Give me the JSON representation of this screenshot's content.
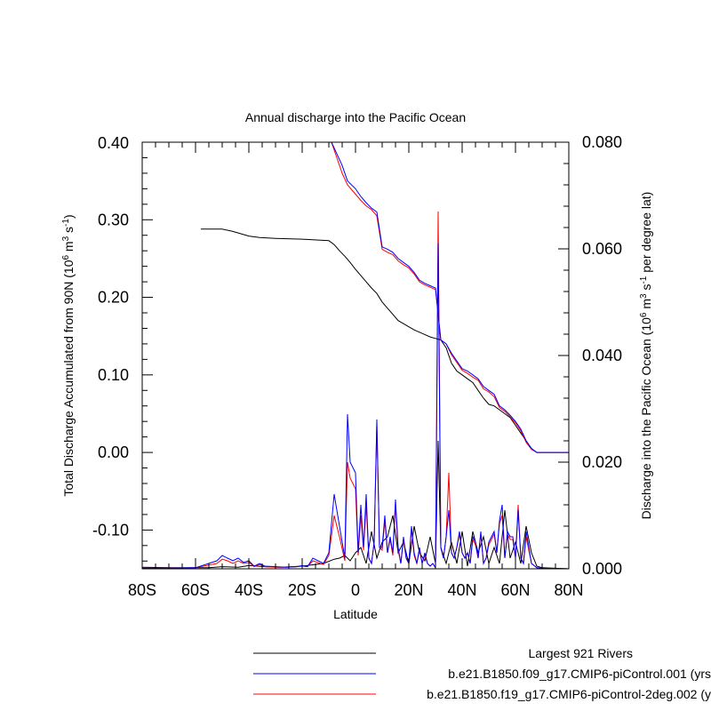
{
  "chart_data": {
    "type": "line",
    "title": "Annual discharge into the Pacific Ocean",
    "xlabel": "Latitude",
    "ylabel_left": [
      "Total Discharge Accumulated from 90N (10",
      "6",
      " m",
      "3",
      " s",
      "-1",
      ")"
    ],
    "ylabel_right": [
      "Discharge into the Pacific Ocean (10",
      "6",
      " m",
      "3",
      " s",
      "-1",
      " per degree lat)"
    ],
    "xlim": [
      -80,
      80
    ],
    "ylim_left": [
      -0.15,
      0.4
    ],
    "ylim_right": [
      0.0,
      0.08
    ],
    "x_ticks": [
      -80,
      -60,
      -40,
      -20,
      0,
      20,
      40,
      60,
      80
    ],
    "x_tick_labels": [
      "80S",
      "60S",
      "40S",
      "20S",
      "0",
      "20N",
      "40N",
      "60N",
      "80N"
    ],
    "left_ticks": [
      0.3,
      0.2,
      0.1,
      0.0,
      -0.1
    ],
    "left_tick_labels": [
      "0.30",
      "0.20",
      "0.10",
      "0.00",
      "-0.10"
    ],
    "left_top_label": "0.40",
    "right_ticks": [
      0.08,
      0.06,
      0.04,
      0.02,
      0.0
    ],
    "right_tick_labels": [
      "0.080",
      "0.060",
      "0.040",
      "0.020",
      "0.000"
    ],
    "legend": {
      "placement": "bottom-right",
      "entries": [
        {
          "label": "Largest 921 Rivers",
          "color": "#000000"
        },
        {
          "label": "b.e21.B1850.f09_g17.CMIP6-piControl.001 (yrs",
          "color": "#0000ff"
        },
        {
          "label": "b.e21.B1850.f19_g17.CMIP6-piControl-2deg.002 (y",
          "color": "#ff0000"
        }
      ]
    },
    "series": [
      {
        "name": "Largest 921 Rivers",
        "axis": "left",
        "color": "#000000",
        "x": [
          -58,
          -50,
          -46,
          -42,
          -40,
          -36,
          -30,
          -20,
          -10,
          -8,
          -6,
          -4,
          -2,
          0,
          2,
          4,
          6,
          8,
          10,
          12,
          14,
          16,
          18,
          20,
          22,
          24,
          26,
          28,
          30,
          32,
          34,
          36,
          38,
          40,
          42,
          44,
          46,
          48,
          50,
          52,
          54,
          56,
          58,
          60,
          62,
          64,
          66,
          68,
          70,
          80
        ],
        "y": [
          0.288,
          0.288,
          0.285,
          0.281,
          0.279,
          0.277,
          0.276,
          0.275,
          0.273,
          0.268,
          0.26,
          0.253,
          0.245,
          0.236,
          0.228,
          0.22,
          0.212,
          0.205,
          0.194,
          0.186,
          0.178,
          0.17,
          0.166,
          0.162,
          0.158,
          0.155,
          0.152,
          0.149,
          0.147,
          0.145,
          0.135,
          0.115,
          0.105,
          0.1,
          0.095,
          0.09,
          0.08,
          0.07,
          0.062,
          0.06,
          0.055,
          0.05,
          0.045,
          0.035,
          0.025,
          0.015,
          0.005,
          0.0,
          0.0,
          0.0
        ]
      },
      {
        "name": "b.e21.B1850.f09_g17.CMIP6-piControl.001 (yrs",
        "axis": "left",
        "color": "#0000ff",
        "x": [
          -9,
          -7,
          -5,
          -3,
          0,
          2,
          4,
          6,
          8,
          10,
          12,
          14,
          16,
          18,
          20,
          22,
          24,
          26,
          28,
          30,
          32,
          34,
          36,
          38,
          40,
          42,
          44,
          46,
          48,
          50,
          52,
          54,
          56,
          58,
          60,
          62,
          64,
          66,
          68,
          70,
          80
        ],
        "y": [
          0.4,
          0.385,
          0.37,
          0.35,
          0.34,
          0.33,
          0.322,
          0.315,
          0.31,
          0.265,
          0.262,
          0.258,
          0.25,
          0.245,
          0.24,
          0.232,
          0.222,
          0.218,
          0.215,
          0.212,
          0.145,
          0.14,
          0.128,
          0.118,
          0.108,
          0.105,
          0.1,
          0.095,
          0.085,
          0.08,
          0.075,
          0.06,
          0.055,
          0.048,
          0.04,
          0.03,
          0.015,
          0.005,
          0.0,
          0.0,
          0.0
        ]
      },
      {
        "name": "b.e21.B1850.f19_g17.CMIP6-piControl-2deg.002 (y",
        "axis": "left",
        "color": "#ff0000",
        "x": [
          -9,
          -7,
          -5,
          -3,
          0,
          2,
          4,
          6,
          8,
          10,
          12,
          14,
          16,
          18,
          20,
          22,
          24,
          26,
          28,
          30,
          32,
          34,
          36,
          38,
          40,
          42,
          44,
          46,
          48,
          50,
          52,
          54,
          56,
          58,
          60,
          62,
          64,
          66,
          68,
          70,
          80
        ],
        "y": [
          0.4,
          0.38,
          0.36,
          0.345,
          0.333,
          0.325,
          0.318,
          0.313,
          0.305,
          0.262,
          0.258,
          0.255,
          0.247,
          0.242,
          0.238,
          0.23,
          0.22,
          0.216,
          0.213,
          0.21,
          0.145,
          0.14,
          0.126,
          0.116,
          0.106,
          0.102,
          0.097,
          0.093,
          0.082,
          0.078,
          0.072,
          0.058,
          0.053,
          0.046,
          0.038,
          0.028,
          0.013,
          0.004,
          0.0,
          0.0,
          0.0
        ]
      },
      {
        "name": "Largest 921 Rivers",
        "axis": "right",
        "color": "#000000",
        "x": [
          -80,
          -70,
          -55,
          -50,
          -44,
          -40,
          -34,
          -28,
          -20,
          -12,
          -8,
          -6,
          -4,
          -2,
          0,
          2,
          4,
          6,
          8,
          10,
          12,
          14,
          16,
          18,
          20,
          22,
          24,
          26,
          28,
          30,
          31,
          32,
          34,
          36,
          38,
          40,
          42,
          44,
          46,
          48,
          50,
          52,
          54,
          56,
          58,
          60,
          62,
          64,
          66,
          68,
          70,
          80
        ],
        "y": [
          0.0003,
          0.0002,
          0.0002,
          0.0004,
          0.0003,
          0.0006,
          0.0004,
          0.0003,
          0.0005,
          0.001,
          0.0018,
          0.002,
          0.0025,
          0.0015,
          0.003,
          0.004,
          0.001,
          0.007,
          0.002,
          0.005,
          0.006,
          0.01,
          0.003,
          0.005,
          0.001,
          0.008,
          0.003,
          0.0015,
          0.006,
          0.001,
          0.024,
          0.004,
          0.001,
          0.005,
          0.001,
          0.007,
          0.0005,
          0.007,
          0.003,
          0.006,
          0.001,
          0.004,
          0.001,
          0.011,
          0.002,
          0.005,
          0.001,
          0.008,
          0.003,
          0.0005,
          0.0002,
          0.0
        ]
      },
      {
        "name": "b.e21.B1850.f09_g17.CMIP6-piControl.001 (yrs",
        "axis": "right",
        "color": "#0000ff",
        "x": [
          -80,
          -70,
          -60,
          -52,
          -50,
          -48,
          -46,
          -44,
          -42,
          -40,
          -38,
          -36,
          -34,
          -30,
          -26,
          -22,
          -20,
          -18,
          -16,
          -12,
          -10,
          -8,
          -6,
          -4,
          -3,
          -2,
          0,
          1,
          2,
          3,
          4,
          5,
          6,
          7,
          8,
          9,
          10,
          11,
          12,
          13,
          14,
          15,
          16,
          17,
          18,
          19,
          20,
          21,
          22,
          23,
          24,
          25,
          26,
          27,
          28,
          29,
          30,
          31,
          32,
          33,
          34,
          35,
          36,
          37,
          38,
          39,
          40,
          41,
          42,
          43,
          44,
          45,
          46,
          47,
          48,
          49,
          50,
          51,
          52,
          53,
          54,
          55,
          56,
          57,
          58,
          59,
          60,
          61,
          62,
          63,
          64,
          66,
          68,
          70,
          80
        ],
        "y": [
          0.0001,
          0.0001,
          0.0002,
          0.0015,
          0.0025,
          0.002,
          0.0015,
          0.002,
          0.0012,
          0.0015,
          0.0005,
          0.001,
          0.0005,
          0.0004,
          0.0003,
          0.0004,
          0.0006,
          0.0004,
          0.002,
          0.001,
          0.003,
          0.014,
          0.008,
          0.002,
          0.029,
          0.02,
          0.018,
          0.003,
          0.012,
          0.004,
          0.014,
          0.002,
          0.001,
          0.005,
          0.028,
          0.004,
          0.004,
          0.01,
          0.003,
          0.006,
          0.003,
          0.013,
          0.004,
          0.001,
          0.006,
          0.002,
          0.001,
          0.008,
          0.003,
          0.001,
          0.004,
          0.001,
          0.003,
          0.001,
          0.0005,
          0.001,
          0.0002,
          0.061,
          0.004,
          0.002,
          0.006,
          0.011,
          0.003,
          0.002,
          0.004,
          0.007,
          0.003,
          0.002,
          0.003,
          0.001,
          0.006,
          0.005,
          0.002,
          0.007,
          0.001,
          0.002,
          0.005,
          0.006,
          0.007,
          0.003,
          0.009,
          0.012,
          0.002,
          0.007,
          0.006,
          0.006,
          0.002,
          0.011,
          0.002,
          0.001,
          0.007,
          0.001,
          0.0002,
          0.0001,
          0.0
        ]
      },
      {
        "name": "b.e21.B1850.f19_g17.CMIP6-piControl-2deg.002 (y",
        "axis": "right",
        "color": "#ff0000",
        "x": [
          -80,
          -70,
          -60,
          -52,
          -50,
          -48,
          -46,
          -44,
          -42,
          -40,
          -38,
          -36,
          -34,
          -30,
          -26,
          -22,
          -20,
          -18,
          -16,
          -12,
          -10,
          -8,
          -6,
          -4,
          -3,
          -2,
          0,
          1,
          2,
          3,
          4,
          5,
          6,
          7,
          8,
          9,
          10,
          11,
          12,
          13,
          14,
          15,
          16,
          17,
          18,
          19,
          20,
          21,
          22,
          23,
          24,
          25,
          26,
          27,
          28,
          29,
          30,
          31,
          32,
          33,
          34,
          35,
          36,
          37,
          38,
          39,
          40,
          41,
          42,
          43,
          44,
          45,
          46,
          47,
          48,
          49,
          50,
          51,
          52,
          53,
          54,
          55,
          56,
          57,
          58,
          59,
          60,
          61,
          62,
          63,
          64,
          66,
          68,
          70,
          80
        ],
        "y": [
          0.0001,
          0.0001,
          0.0002,
          0.001,
          0.0018,
          0.0015,
          0.001,
          0.0015,
          0.001,
          0.0012,
          0.0004,
          0.0008,
          0.0004,
          0.0003,
          0.0003,
          0.0004,
          0.0005,
          0.0004,
          0.0015,
          0.0008,
          0.0025,
          0.01,
          0.006,
          0.0015,
          0.02,
          0.017,
          0.015,
          0.0025,
          0.01,
          0.0035,
          0.012,
          0.002,
          0.001,
          0.005,
          0.027,
          0.004,
          0.0035,
          0.009,
          0.003,
          0.0055,
          0.0025,
          0.012,
          0.0035,
          0.001,
          0.0055,
          0.002,
          0.001,
          0.0075,
          0.0025,
          0.001,
          0.0035,
          0.001,
          0.0025,
          0.001,
          0.0005,
          0.001,
          0.0002,
          0.067,
          0.004,
          0.002,
          0.006,
          0.018,
          0.003,
          0.002,
          0.004,
          0.0065,
          0.003,
          0.002,
          0.003,
          0.001,
          0.0055,
          0.0045,
          0.002,
          0.0065,
          0.001,
          0.002,
          0.0045,
          0.0055,
          0.0065,
          0.003,
          0.0085,
          0.01,
          0.002,
          0.0065,
          0.0055,
          0.0055,
          0.002,
          0.012,
          0.002,
          0.001,
          0.006,
          0.001,
          0.0002,
          0.0001,
          0.0
        ]
      }
    ]
  }
}
